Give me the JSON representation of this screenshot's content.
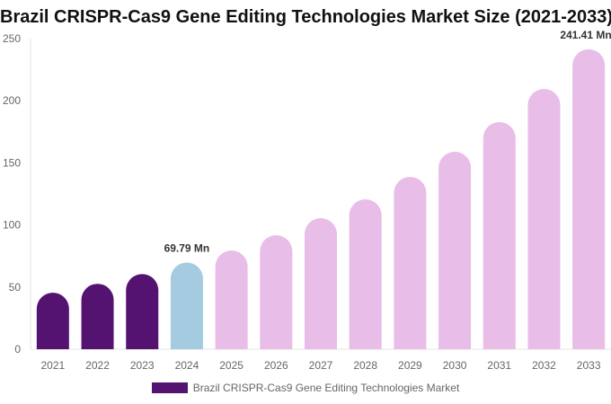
{
  "chart_data": {
    "type": "bar",
    "title": "Brazil CRISPR-Cas9 Gene Editing Technologies Market Size (2021-2033)",
    "categories": [
      "2021",
      "2022",
      "2023",
      "2024",
      "2025",
      "2026",
      "2027",
      "2028",
      "2029",
      "2030",
      "2031",
      "2032",
      "2033"
    ],
    "series": [
      {
        "name": "Brazil CRISPR-Cas9 Gene Editing Technologies Market",
        "values": [
          45.5,
          52.7,
          60.5,
          69.79,
          79.5,
          91.8,
          105.5,
          120.7,
          138.7,
          159.0,
          182.8,
          209.5,
          241.41
        ]
      }
    ],
    "ylim": [
      0,
      250
    ],
    "yticks": [
      0,
      50,
      100,
      150,
      200,
      250
    ],
    "data_labels": {
      "3": "69.79 Mn",
      "12": "241.41 Mn"
    },
    "colors": {
      "historical": "#541371",
      "current": "#a4cbe0",
      "forecast": "#e8bde8"
    },
    "bar_color_groups": [
      "historical",
      "historical",
      "historical",
      "current",
      "forecast",
      "forecast",
      "forecast",
      "forecast",
      "forecast",
      "forecast",
      "forecast",
      "forecast",
      "forecast"
    ],
    "legend": "bottom",
    "grid": false
  }
}
